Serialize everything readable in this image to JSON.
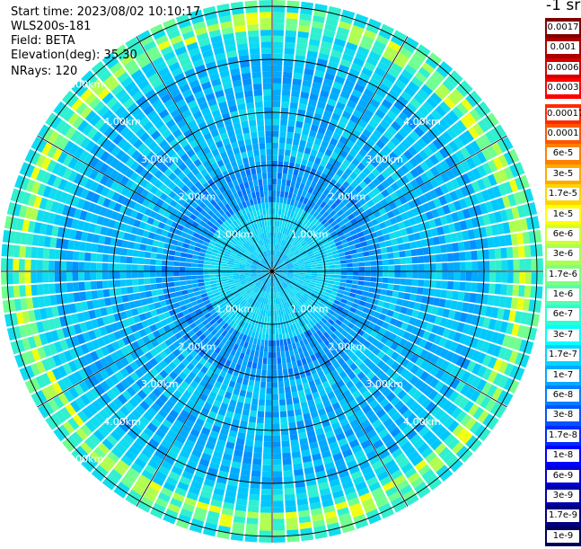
{
  "info": {
    "start_time": "Start time: 2023/08/02 10:10:17",
    "device": "WLS200s-181",
    "field": "Field: BETA",
    "elevation": "Elevation(deg): 35.30",
    "nrays": "NRays: 120"
  },
  "plot": {
    "type": "polar-ppi",
    "rays": 120,
    "range_ring_labels_upper": [
      "1.00km",
      "2.00km",
      "3.00km",
      "4.00km",
      "5.00km"
    ],
    "range_ring_labels_lower": [
      "1.00km",
      "2.00km",
      "3.00km",
      "4.00km",
      "5.00km"
    ]
  },
  "colorbar": {
    "unit_label": "-1 sr",
    "upper_scale": [
      "0.0017",
      "0.001",
      "0.0006",
      "0.0003"
    ],
    "lower_scale": [
      "0.00017",
      "0.0001",
      "6e-5",
      "3e-5",
      "1.7e-5",
      "1e-5",
      "6e-6",
      "3e-6",
      "1.7e-6",
      "1e-6",
      "6e-7",
      "3e-7",
      "1.7e-7",
      "1e-7",
      "6e-8",
      "3e-8",
      "1.7e-8",
      "1e-8",
      "6e-9",
      "3e-9",
      "1.7e-9",
      "1e-9"
    ],
    "upper_colors": [
      "#800000",
      "#aa0000",
      "#d40000",
      "#ff0000"
    ],
    "lower_colors": [
      "#ff2a00",
      "#ff5500",
      "#ff7f00",
      "#ffaa00",
      "#ffd400",
      "#ffff00",
      "#d4ff2a",
      "#aaff55",
      "#7fff7f",
      "#55ffaa",
      "#2affd4",
      "#00ffff",
      "#00d4ff",
      "#00aaff",
      "#007fff",
      "#0055ff",
      "#002aff",
      "#0000ff",
      "#0000d4",
      "#0000aa",
      "#00007f",
      "#000055"
    ]
  }
}
